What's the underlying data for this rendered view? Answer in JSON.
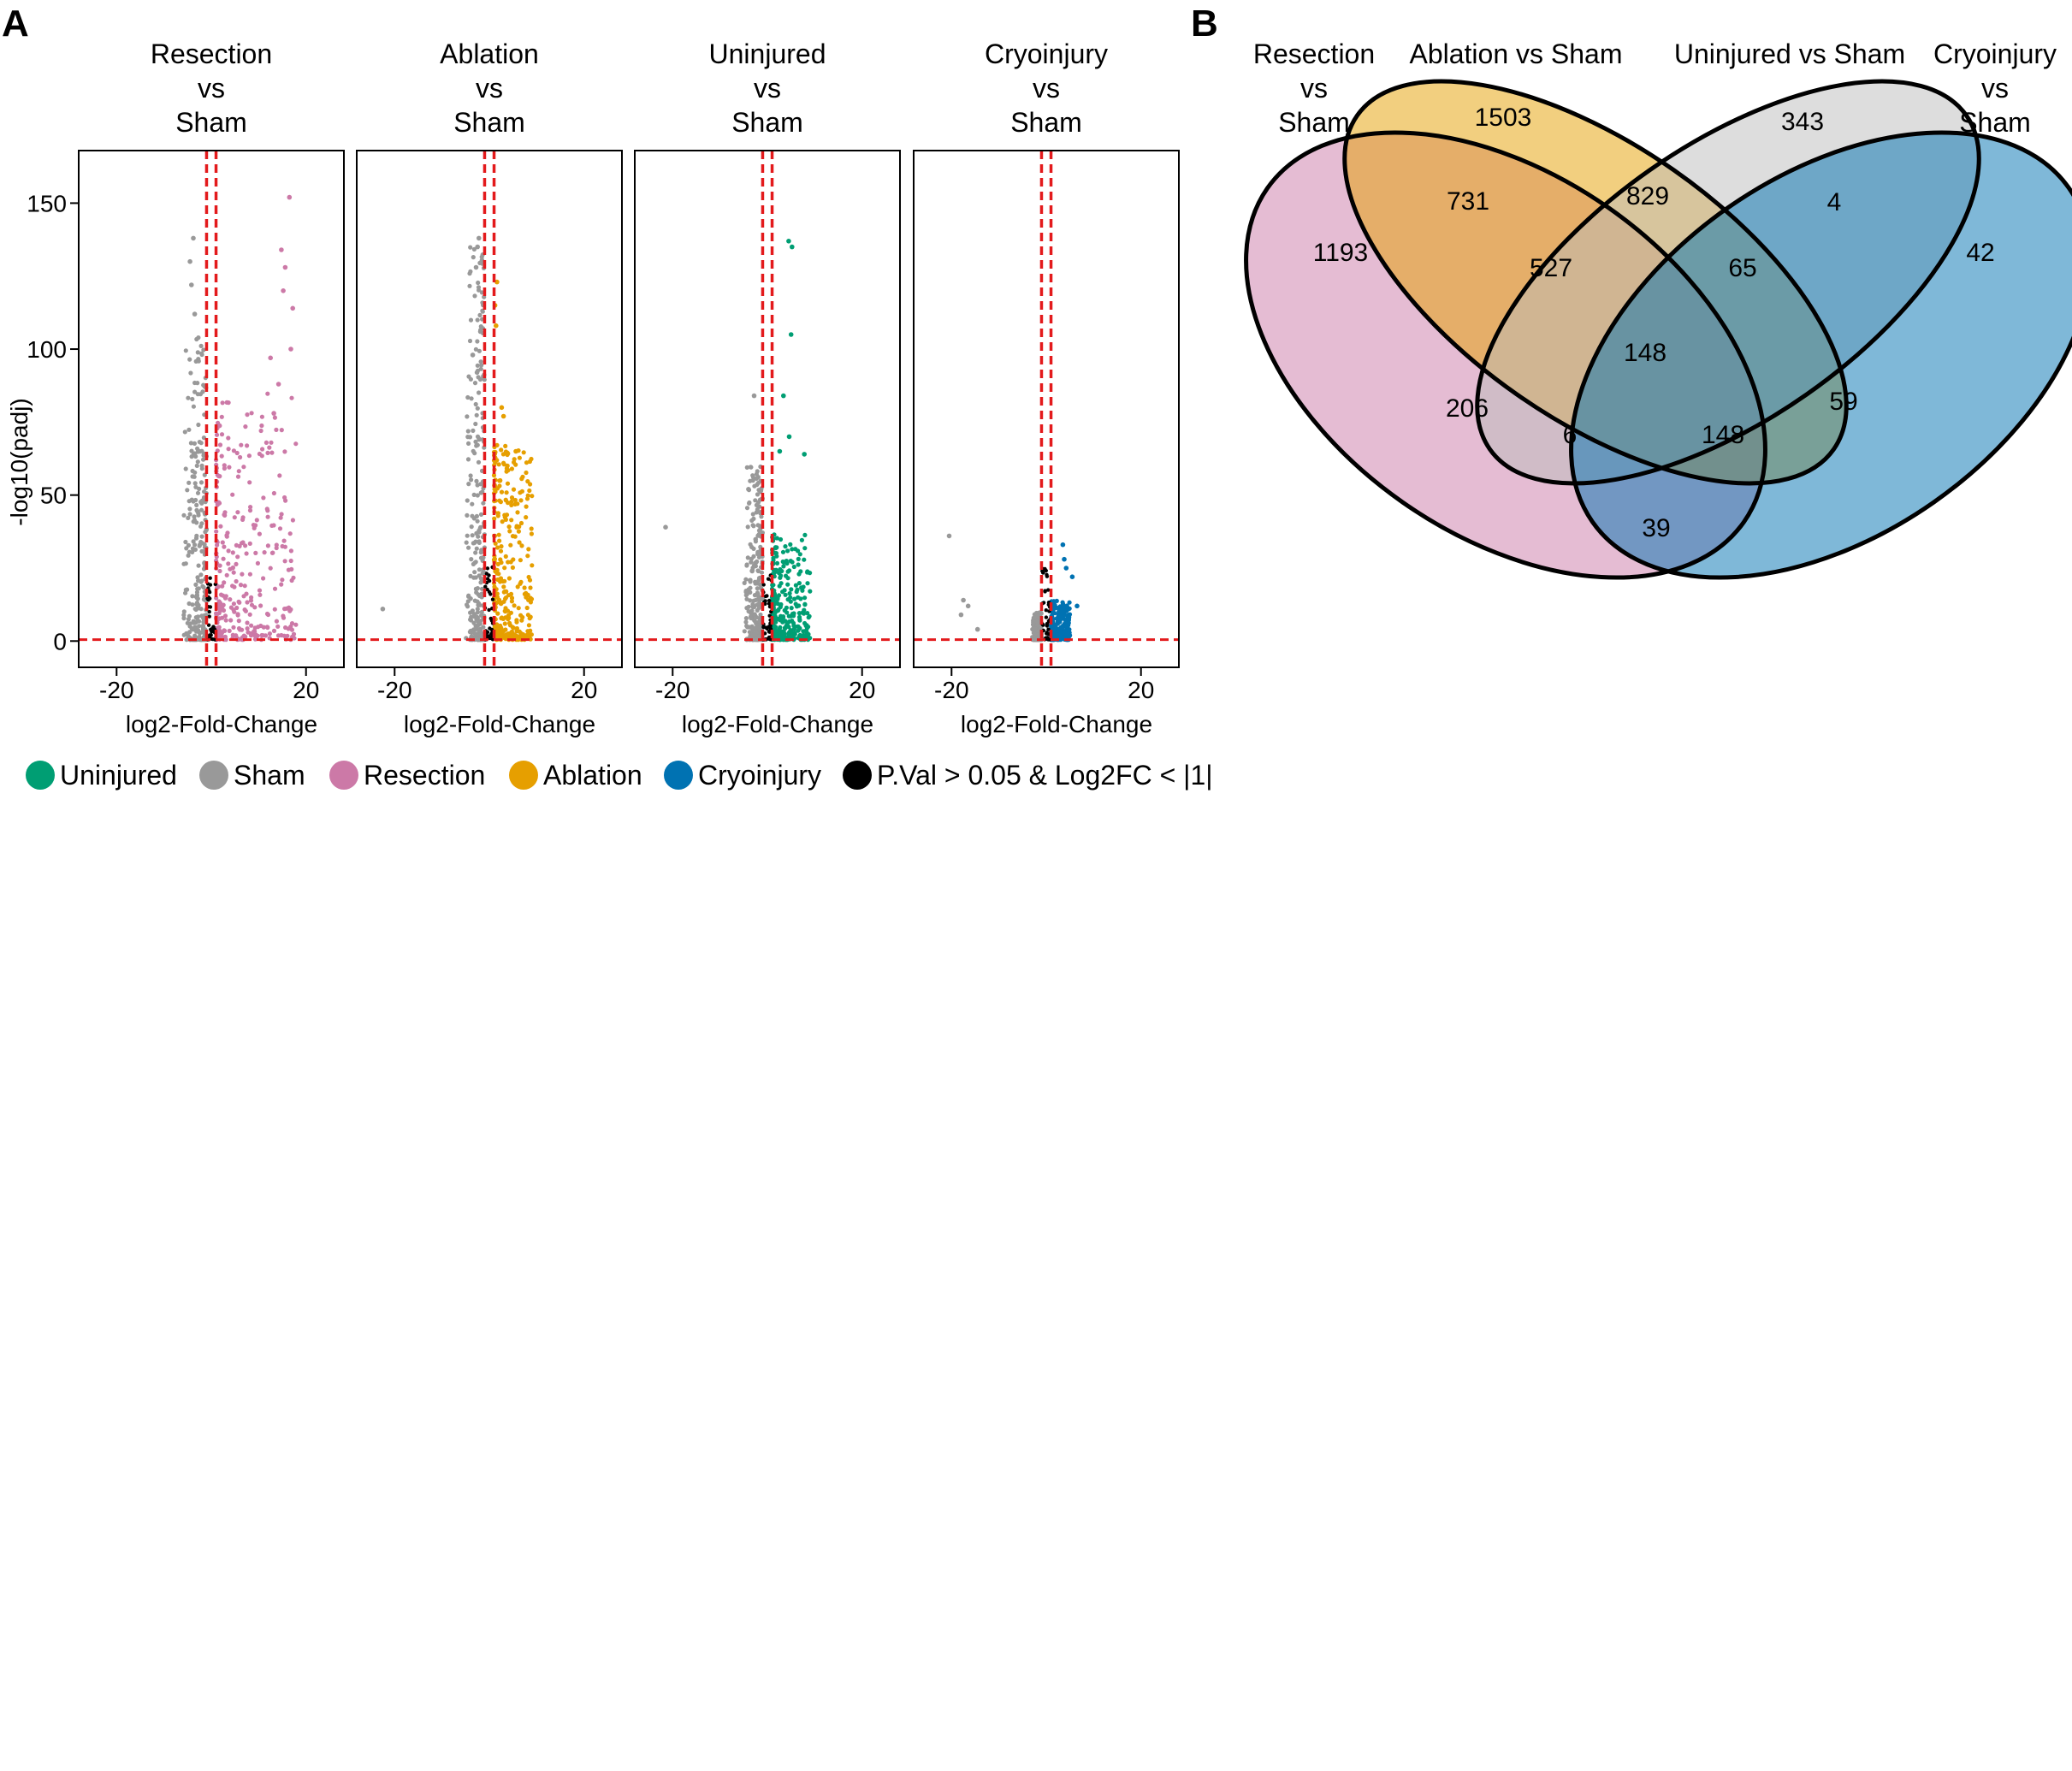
{
  "panel_a_letter": "A",
  "panel_b_letter": "B",
  "chart_data": [
    {
      "type": "scatter",
      "subtype": "volcano",
      "ylabel": "-log10(padj)",
      "xlabel": "log2-Fold-Change",
      "xlim": [
        -28,
        28
      ],
      "ylim": [
        -9,
        168
      ],
      "xticks": [
        -20,
        20
      ],
      "yticks": [
        0,
        50,
        100,
        150
      ],
      "thresholds": {
        "log2fc": [
          -1,
          1
        ],
        "neg_log10_padj": 0.5
      },
      "panels": [
        {
          "title": [
            "Resection",
            "vs",
            "Sham"
          ],
          "up_group": "Resection",
          "up_color": "#CC79A7",
          "down_span": [
            -6,
            -1
          ],
          "up_span": [
            1,
            18
          ],
          "down_max": 105,
          "up_max": 152,
          "down_outliers": [
            [
              -3.8,
              138
            ],
            [
              -4.5,
              130
            ],
            [
              -4.2,
              122
            ],
            [
              -3.5,
              112
            ]
          ],
          "up_outliers": [
            [
              16.5,
              152
            ],
            [
              14.8,
              134
            ],
            [
              15.6,
              128
            ],
            [
              15.2,
              120
            ],
            [
              17.2,
              114
            ],
            [
              16.8,
              100
            ],
            [
              12.5,
              97
            ],
            [
              14.2,
              88
            ],
            [
              13.2,
              78
            ]
          ]
        },
        {
          "title": [
            "Ablation",
            "vs",
            "Sham"
          ],
          "up_group": "Ablation",
          "up_color": "#E69F00",
          "down_span": [
            -5,
            -1
          ],
          "up_span": [
            1,
            9
          ],
          "down_max": 138,
          "up_max": 123,
          "down_outliers": [
            [
              -2.2,
              138
            ],
            [
              -2.5,
              135
            ],
            [
              -2.8,
              128
            ],
            [
              -3.5,
              98
            ],
            [
              -2.6,
              92
            ],
            [
              -22.5,
              11
            ]
          ],
          "up_outliers": [
            [
              1.6,
              123
            ],
            [
              1.2,
              115
            ],
            [
              1.4,
              108
            ],
            [
              2.6,
              80
            ],
            [
              3.0,
              77
            ],
            [
              5.6,
              65
            ],
            [
              3.8,
              60
            ]
          ]
        },
        {
          "title": [
            "Uninjured",
            "vs",
            "Sham"
          ],
          "up_group": "Uninjured",
          "up_color": "#009E73",
          "down_span": [
            -5,
            -1
          ],
          "up_span": [
            1,
            9
          ],
          "down_max": 60,
          "up_max": 65,
          "down_outliers": [
            [
              -2.8,
              84
            ],
            [
              -4.0,
              52
            ],
            [
              -21.5,
              39
            ]
          ],
          "up_outliers": [
            [
              4.5,
              137
            ],
            [
              5.2,
              135
            ],
            [
              5.0,
              105
            ],
            [
              3.4,
              84
            ],
            [
              7.8,
              64
            ],
            [
              4.6,
              70
            ],
            [
              2.6,
              65
            ]
          ]
        },
        {
          "title": [
            "Cryoinjury",
            "vs",
            "Sham"
          ],
          "up_group": "Cryoinjury",
          "up_color": "#0072B2",
          "down_span": [
            -3,
            -1
          ],
          "up_span": [
            1,
            5
          ],
          "down_max": 10,
          "up_max": 22,
          "down_outliers": [
            [
              -20.5,
              36
            ],
            [
              -17.5,
              14
            ],
            [
              -16.5,
              12
            ],
            [
              -18.0,
              9
            ],
            [
              -14.5,
              4
            ]
          ],
          "up_outliers": [
            [
              3.5,
              33
            ],
            [
              3.8,
              28
            ],
            [
              4.2,
              25
            ],
            [
              5.5,
              22
            ],
            [
              6.5,
              12
            ]
          ]
        }
      ],
      "legend": [
        {
          "label": "Uninjured",
          "color": "#009E73"
        },
        {
          "label": "Sham",
          "color": "#999999"
        },
        {
          "label": "Resection",
          "color": "#CC79A7"
        },
        {
          "label": "Ablation",
          "color": "#E69F00"
        },
        {
          "label": "Cryoinjury",
          "color": "#0072B2"
        },
        {
          "label": "P.Val > 0.05 & Log2FC < |1|",
          "color": "#000000"
        }
      ]
    },
    {
      "type": "venn",
      "sets": [
        {
          "name": [
            "Resection",
            "vs",
            "Sham"
          ],
          "color": "#CC79A7"
        },
        {
          "name": [
            "Ablation vs Sham"
          ],
          "color": "#E69F00"
        },
        {
          "name": [
            "Uninjured vs Sham"
          ],
          "color": "#BBBBBB"
        },
        {
          "name": [
            "Cryoinjury",
            "vs",
            "Sham"
          ],
          "color": "#0072B2"
        }
      ],
      "regions": [
        {
          "sets": [
            "Resection"
          ],
          "count": 1193
        },
        {
          "sets": [
            "Ablation"
          ],
          "count": 1503
        },
        {
          "sets": [
            "Uninjured"
          ],
          "count": 343
        },
        {
          "sets": [
            "Cryoinjury"
          ],
          "count": 42
        },
        {
          "sets": [
            "Resection",
            "Ablation"
          ],
          "count": 731
        },
        {
          "sets": [
            "Ablation",
            "Uninjured"
          ],
          "count": 829
        },
        {
          "sets": [
            "Uninjured",
            "Cryoinjury"
          ],
          "count": 4
        },
        {
          "sets": [
            "Resection",
            "Ablation",
            "Uninjured"
          ],
          "count": 527
        },
        {
          "sets": [
            "Ablation",
            "Uninjured",
            "Cryoinjury"
          ],
          "count": 65
        },
        {
          "sets": [
            "Resection",
            "Ablation",
            "Uninjured",
            "Cryoinjury"
          ],
          "count": 148
        },
        {
          "sets": [
            "Resection",
            "Uninjured"
          ],
          "count": 206
        },
        {
          "sets": [
            "Ablation",
            "Cryoinjury"
          ],
          "count": 59
        },
        {
          "sets": [
            "Resection",
            "Uninjured",
            "Cryoinjury"
          ],
          "count": 6
        },
        {
          "sets": [
            "Resection",
            "Ablation",
            "Cryoinjury"
          ],
          "count": 148
        },
        {
          "sets": [
            "Resection",
            "Cryoinjury"
          ],
          "count": 39
        }
      ]
    }
  ]
}
